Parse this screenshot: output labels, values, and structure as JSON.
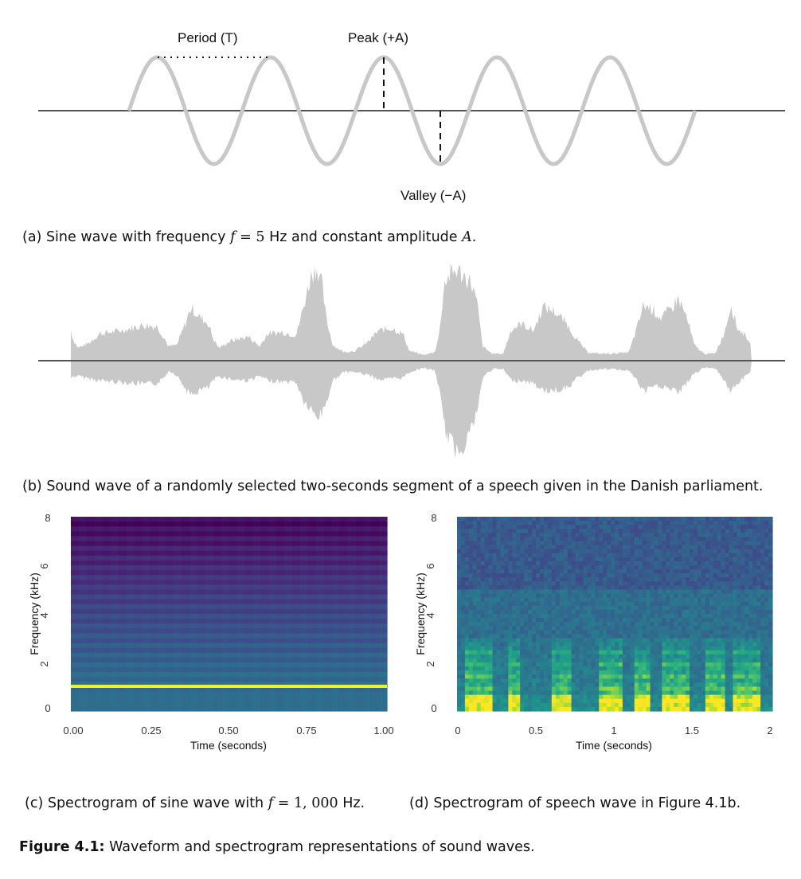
{
  "panel_a": {
    "labels": {
      "period": "Period (T)",
      "peak": "Peak (+A)",
      "valley": "Valley (−A)"
    },
    "caption": {
      "prefix": "(a) Sine wave with frequency ",
      "f": "f",
      "eq": " = 5",
      "mid": " Hz and constant amplitude ",
      "A": "A",
      "end": "."
    },
    "waveform": {
      "cycles": 5,
      "frequency_hz": 5,
      "color": "#c8c8c8"
    }
  },
  "panel_b": {
    "caption": "(b) Sound wave of a randomly selected two-seconds segment of a speech given in the Danish parliament.",
    "waveform_color": "#c8c8c8"
  },
  "panel_c": {
    "caption": {
      "prefix": "(c) Spectrogram of sine wave with ",
      "f": "f",
      "eq": " = 1, 000",
      "end": " Hz."
    },
    "chart_data": {
      "type": "heatmap",
      "xlabel": "Time (seconds)",
      "ylabel": "Frequency (kHz)",
      "x_ticks": [
        "0.00",
        "0.25",
        "0.50",
        "0.75",
        "1.00"
      ],
      "y_ticks": [
        "0",
        "2",
        "4",
        "6",
        "8"
      ],
      "xlim": [
        0,
        1
      ],
      "ylim": [
        0,
        8
      ],
      "highlight_frequency_khz": 1,
      "colormap": "viridis"
    }
  },
  "panel_d": {
    "caption": "(d) Spectrogram of speech wave in Figure 4.1b.",
    "chart_data": {
      "type": "heatmap",
      "xlabel": "Time (seconds)",
      "ylabel": "Frequency (kHz)",
      "x_ticks": [
        "0",
        "0.5",
        "1",
        "1.5",
        "2"
      ],
      "y_ticks": [
        "0",
        "2",
        "4",
        "6",
        "8"
      ],
      "xlim": [
        0,
        2
      ],
      "ylim": [
        0,
        8
      ],
      "colormap": "viridis"
    }
  },
  "figure_caption": {
    "label": "Figure 4.1:",
    "text": " Waveform and spectrogram representations of sound waves."
  }
}
